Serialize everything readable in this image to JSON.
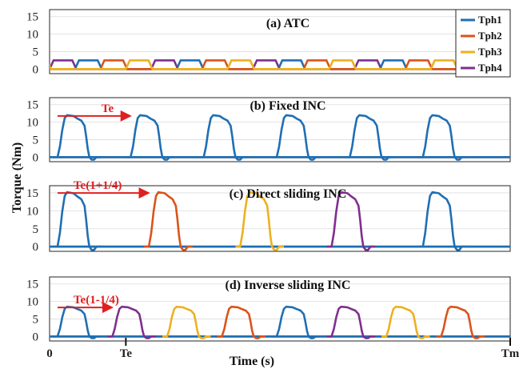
{
  "chart_data": {
    "type": "line",
    "xlabel": "Time (s)",
    "ylabel": "Torque (Nm)",
    "x_ticks": [
      "0",
      "Te",
      "Tm"
    ],
    "x_range": [
      0,
      5.8
    ],
    "grid": true,
    "legend_position": "top-right",
    "colors": {
      "Tph1": "#1f6fb4",
      "Tph2": "#d9541a",
      "Tph3": "#edb120",
      "Tph4": "#7e2f8e"
    },
    "legend": [
      "Tph1",
      "Tph2",
      "Tph3",
      "Tph4"
    ],
    "panels": [
      {
        "title": "(a) ATC",
        "y_ticks": [
          0,
          5,
          10,
          15
        ],
        "ylim": [
          -1.3,
          17
        ],
        "mode": "atc",
        "level": 2.5,
        "phase_period": 0.32,
        "start_order": [
          "Tph4",
          "Tph1",
          "Tph2",
          "Tph3"
        ]
      },
      {
        "title": "(b) Fixed INC",
        "y_ticks": [
          0,
          5,
          10,
          15
        ],
        "ylim": [
          -1.3,
          17
        ],
        "mode": "pulses",
        "peak": 12,
        "pulses": [
          {
            "series": "Tph1",
            "t": 0.1
          },
          {
            "series": "Tph1",
            "t": 1.02
          },
          {
            "series": "Tph1",
            "t": 1.94
          },
          {
            "series": "Tph1",
            "t": 2.86
          },
          {
            "series": "Tph1",
            "t": 3.78
          },
          {
            "series": "Tph1",
            "t": 4.7
          }
        ],
        "annotation": {
          "text": "Te",
          "from": 0.1,
          "to": 1.02,
          "y": 12
        }
      },
      {
        "title": "(c) Direct sliding INC",
        "y_ticks": [
          0,
          5,
          10,
          15
        ],
        "ylim": [
          -1.3,
          17
        ],
        "mode": "pulses",
        "peak": 15.2,
        "pulses": [
          {
            "series": "Tph1",
            "t": 0.1
          },
          {
            "series": "Tph2",
            "t": 1.25
          },
          {
            "series": "Tph3",
            "t": 2.4
          },
          {
            "series": "Tph4",
            "t": 3.55
          },
          {
            "series": "Tph1",
            "t": 4.7
          }
        ],
        "annotation": {
          "text": "Te(1+1/4)",
          "from": 0.1,
          "to": 1.25,
          "y": 15.2
        }
      },
      {
        "title": "(d) Inverse sliding INC",
        "y_ticks": [
          0,
          5,
          10,
          15
        ],
        "ylim": [
          -1.3,
          17
        ],
        "mode": "pulses",
        "peak": 8.5,
        "pulses": [
          {
            "series": "Tph1",
            "t": 0.1
          },
          {
            "series": "Tph4",
            "t": 0.79
          },
          {
            "series": "Tph3",
            "t": 1.48
          },
          {
            "series": "Tph2",
            "t": 2.17
          },
          {
            "series": "Tph1",
            "t": 2.86
          },
          {
            "series": "Tph4",
            "t": 3.55
          },
          {
            "series": "Tph3",
            "t": 4.24
          },
          {
            "series": "Tph2",
            "t": 4.93
          }
        ],
        "annotation": {
          "text": "Te(1-1/4)",
          "from": 0.1,
          "to": 0.79,
          "y": 8.5
        }
      }
    ]
  }
}
